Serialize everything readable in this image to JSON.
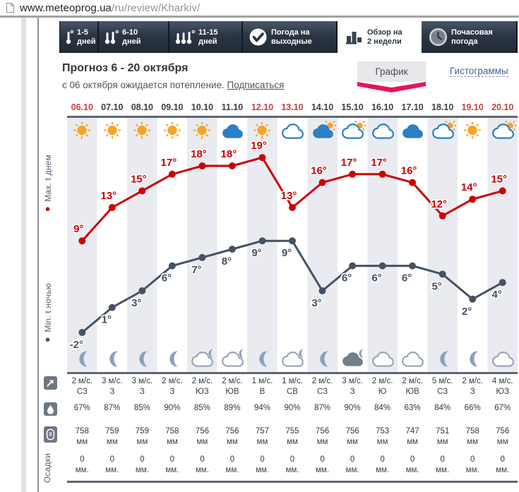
{
  "browser": {
    "url_host": "www.meteoprog.ua",
    "url_path": "/ru/review/Kharkiv/"
  },
  "tabs": [
    {
      "line1": "1-5",
      "line2": "дней",
      "icon": "thermometer-1",
      "active": false
    },
    {
      "line1": "6-10",
      "line2": "дней",
      "icon": "thermometer-2",
      "active": false
    },
    {
      "line1": "11-15",
      "line2": "дней",
      "icon": "thermometer-3",
      "active": false
    },
    {
      "line1": "Погода на",
      "line2": "выходные",
      "icon": "checkmark",
      "active": false
    },
    {
      "line1": "Обзор на",
      "line2": "2 недели",
      "icon": "bar-chart",
      "active": true
    },
    {
      "line1": "Почасовая",
      "line2": "погода",
      "icon": "clock",
      "active": false
    }
  ],
  "header": {
    "title": "Прогноз 6 - 20 октября",
    "subtitle": "с 06 октября ожидается потепление.",
    "subscribe_link": "Подписаться",
    "view_graph_label": "График",
    "view_histogram_label": "Гистограммы",
    "accent_color": "#e5135e"
  },
  "legend": {
    "max_label": "Max. t днем",
    "min_label": "Min. t ночью"
  },
  "chart_data": {
    "type": "line",
    "title": "Прогноз 6 - 20 октября",
    "categories": [
      "06.10",
      "07.10",
      "08.10",
      "09.10",
      "10.10",
      "11.10",
      "12.10",
      "13.10",
      "14.10",
      "15.10",
      "16.10",
      "17.10",
      "18.10",
      "19.10",
      "20.10"
    ],
    "red_dates": [
      "06.10",
      "12.10",
      "13.10",
      "19.10",
      "20.10"
    ],
    "unit": "°",
    "ylim": [
      -2,
      19
    ],
    "grid": "striped-columns",
    "legend_position": "left",
    "series": [
      {
        "name": "Max. t днем",
        "color": "#cc0001",
        "values": [
          9,
          13,
          15,
          17,
          18,
          18,
          19,
          13,
          16,
          17,
          17,
          16,
          12,
          14,
          15
        ]
      },
      {
        "name": "Min. t ночью",
        "color": "#455263",
        "values": [
          -2,
          1,
          3,
          6,
          7,
          8,
          9,
          9,
          3,
          6,
          6,
          6,
          5,
          2,
          4
        ]
      }
    ],
    "day_icons": [
      "sun",
      "sun",
      "sun",
      "sun",
      "sun",
      "cloud",
      "sun",
      "cloud-o",
      "cloud-sun",
      "cloud-o-sun",
      "cloud-o",
      "cloud",
      "cloud-o-sun",
      "sun",
      "cloud-o-sun"
    ],
    "night_icons": [
      "moon",
      "moon",
      "moon",
      "moon",
      "cloud-o-moon",
      "cloud-o-moon",
      "moon",
      "cloud-o-moon",
      "moon",
      "cloud-moon",
      "cloud-n",
      "cloud-n",
      "moon",
      "moon",
      "cloud-n"
    ],
    "rows": {
      "wind": {
        "values": [
          {
            "speed": "2 м/с.",
            "dir": "СЗ"
          },
          {
            "speed": "3 м/с.",
            "dir": "З"
          },
          {
            "speed": "3 м/с.",
            "dir": "З"
          },
          {
            "speed": "2 м/с.",
            "dir": "З"
          },
          {
            "speed": "2 м/с.",
            "dir": "ЮЗ"
          },
          {
            "speed": "2 м/с.",
            "dir": "ЮВ"
          },
          {
            "speed": "1 м/с.",
            "dir": "В"
          },
          {
            "speed": "1 м/с.",
            "dir": "СВ"
          },
          {
            "speed": "2 м/с.",
            "dir": "СЗ"
          },
          {
            "speed": "3 м/с.",
            "dir": "З"
          },
          {
            "speed": "2 м/с.",
            "dir": "Ю"
          },
          {
            "speed": "2 м/с.",
            "dir": "ЮВ"
          },
          {
            "speed": "5 м/с.",
            "dir": "СЗ"
          },
          {
            "speed": "2 м/с.",
            "dir": "З"
          },
          {
            "speed": "4 м/с.",
            "dir": "ЮЗ"
          }
        ]
      },
      "humidity": {
        "values": [
          "67%",
          "87%",
          "85%",
          "90%",
          "85%",
          "89%",
          "94%",
          "90%",
          "87%",
          "90%",
          "84%",
          "63%",
          "84%",
          "66%",
          "67%"
        ]
      },
      "pressure": {
        "unit": "мм",
        "values": [
          "758",
          "759",
          "759",
          "758",
          "756",
          "756",
          "757",
          "755",
          "756",
          "756",
          "753",
          "747",
          "751",
          "758",
          "756"
        ]
      },
      "precipitation": {
        "label": "Осадки",
        "unit": "мм.",
        "values": [
          "0",
          "0",
          "0",
          "0",
          "0",
          "0",
          "0",
          "0",
          "0",
          "0",
          "0",
          "0",
          "0",
          "0",
          "0"
        ]
      }
    }
  }
}
